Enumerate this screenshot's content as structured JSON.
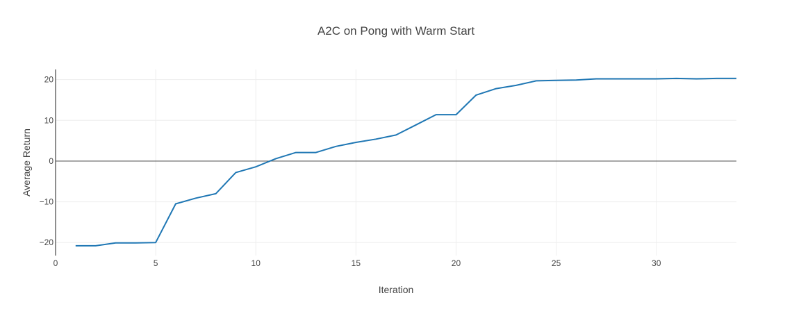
{
  "colors": {
    "line": "#1f77b4",
    "grid": "#eeeeee",
    "zeroline": "#444444",
    "axis": "#444444",
    "text": "#444444"
  },
  "chart_data": {
    "type": "line",
    "title": "A2C on Pong with Warm Start",
    "xlabel": "Iteration",
    "ylabel": "Average Return",
    "xlim": [
      0,
      34
    ],
    "ylim": [
      -23.2,
      22.5
    ],
    "xticks": [
      0,
      5,
      10,
      15,
      20,
      25,
      30
    ],
    "yticks": [
      -20,
      -10,
      0,
      10,
      20
    ],
    "grid": true,
    "legend": false,
    "series": [
      {
        "x": [
          1,
          2,
          3,
          4,
          5,
          6,
          7,
          8,
          9,
          10,
          11,
          12,
          13,
          14,
          15,
          16,
          17,
          18,
          19,
          20,
          21,
          22,
          23,
          24,
          25,
          26,
          27,
          28,
          29,
          30,
          31,
          32,
          33,
          34
        ],
        "values": [
          -20.8,
          -20.8,
          -20.1,
          -20.1,
          -20.0,
          -10.5,
          -9.1,
          -8.0,
          -2.8,
          -1.4,
          0.6,
          2.1,
          2.1,
          3.6,
          4.6,
          5.4,
          6.4,
          8.9,
          11.4,
          11.4,
          16.2,
          17.8,
          18.6,
          19.7,
          19.8,
          19.9,
          20.2,
          20.2,
          20.2,
          20.2,
          20.3,
          20.2,
          20.3,
          20.3
        ]
      }
    ]
  }
}
